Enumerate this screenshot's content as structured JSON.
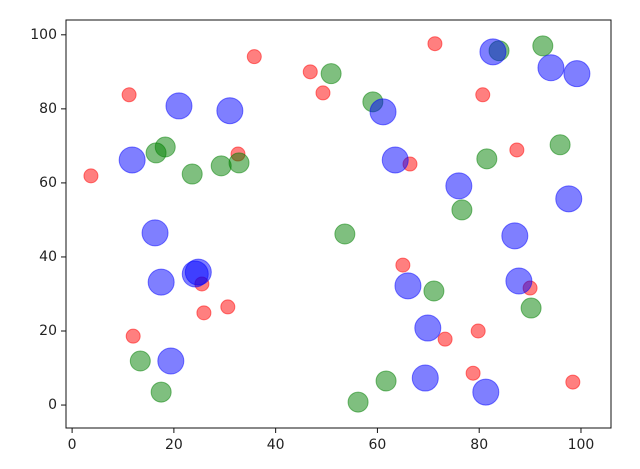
{
  "chart_data": {
    "type": "scatter",
    "alpha": 0.5,
    "grid": false,
    "xlim": [
      -1.2,
      105.9
    ],
    "ylim": [
      -6.2,
      104
    ],
    "xticks": [
      0,
      20,
      40,
      60,
      80,
      100
    ],
    "yticks": [
      0,
      20,
      40,
      60,
      80,
      100
    ],
    "series": [
      {
        "color": "red",
        "x": [
          35.8,
          46.8,
          49.3,
          71.3,
          11.2,
          80.7,
          3.7,
          32.6,
          66.4,
          87.4,
          65.0,
          25.5,
          25.9,
          30.6,
          12.0,
          73.3,
          79.8,
          90.0,
          78.8,
          98.4
        ],
        "values": [
          94.1,
          90,
          84.3,
          97.6,
          83.8,
          83.8,
          61.9,
          67.8,
          65.1,
          68.9,
          37.8,
          32.7,
          24.9,
          26.5,
          18.6,
          17.8,
          20,
          31.6,
          8.6,
          6.2
        ]
      },
      {
        "color": "green",
        "x": [
          50.9,
          92.5,
          83.9,
          59.1,
          18.3,
          16.5,
          23.6,
          29.3,
          32.8,
          81.5,
          95.9,
          76.6,
          53.6,
          71.1,
          90.2,
          13.4,
          17.5,
          56.2,
          61.7
        ],
        "values": [
          89.5,
          97,
          95.7,
          81.9,
          69.7,
          68.1,
          62.4,
          64.6,
          65.4,
          66.5,
          70.3,
          52.7,
          46.2,
          30.8,
          26.2,
          11.9,
          3.5,
          0.8,
          6.5
        ]
      },
      {
        "color": "blue",
        "x": [
          82.7,
          94.1,
          99.2,
          21.0,
          31.0,
          61.1,
          11.8,
          63.5,
          76.0,
          97.6,
          16.3,
          87.0,
          17.5,
          24.2,
          24.8,
          66.0,
          87.8,
          69.9,
          19.4,
          69.4,
          81.3
        ],
        "values": [
          95.4,
          91.1,
          89.5,
          80.8,
          79.5,
          79.2,
          66.2,
          66.2,
          59.2,
          55.7,
          46.5,
          45.7,
          33.2,
          35.4,
          35.9,
          32.2,
          33.5,
          20.8,
          11.9,
          7.3,
          3.5
        ]
      }
    ]
  }
}
